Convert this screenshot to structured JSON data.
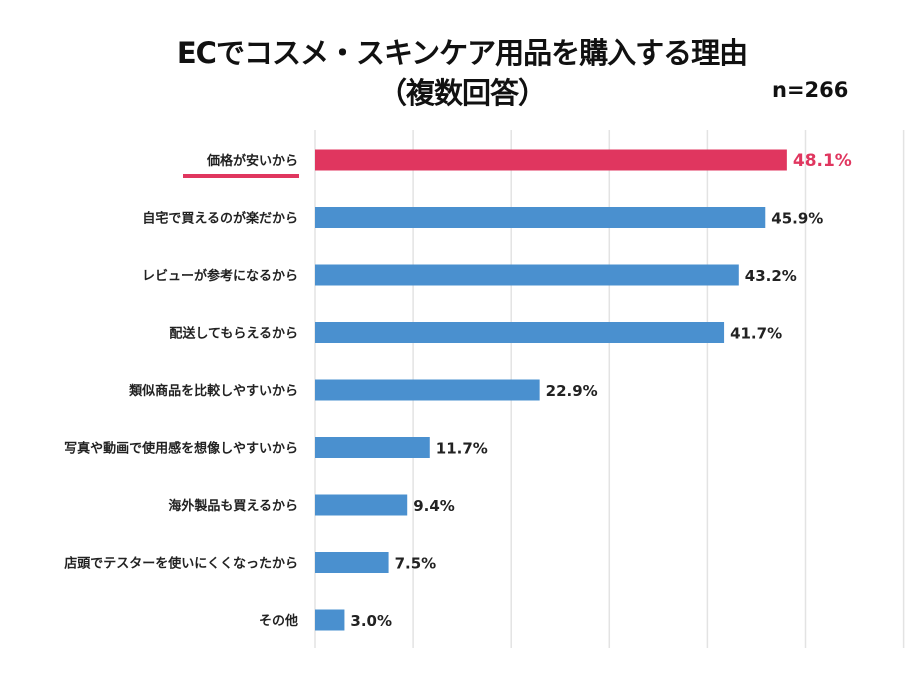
{
  "chart_data": {
    "type": "bar",
    "orientation": "horizontal",
    "title": "ECでコスメ・スキンケア用品を購入する理由",
    "subtitle": "（複数回答）",
    "sample_size": "n=266",
    "categories": [
      "価格が安いから",
      "自宅で買えるのが楽だから",
      "レビューが参考になるから",
      "配送してもらえるから",
      "類似商品を比較しやすいから",
      "写真や動画で使用感を想像しやすいから",
      "海外製品も買えるから",
      "店頭でテスターを使いにくくなったから",
      "その他"
    ],
    "values": [
      48.1,
      45.9,
      43.2,
      41.7,
      22.9,
      11.7,
      9.4,
      7.5,
      3.0
    ],
    "data_labels": [
      "48.1%",
      "45.9%",
      "43.2%",
      "41.7%",
      "22.9%",
      "11.7%",
      "9.4%",
      "7.5%",
      "3.0%"
    ],
    "xlim": [
      0,
      60
    ],
    "grid": true,
    "highlight_index": 0,
    "colors": {
      "bar": "#4a90cf",
      "highlight": "#e0365f",
      "grid": "#e3e3e3",
      "text": "#222222"
    }
  }
}
